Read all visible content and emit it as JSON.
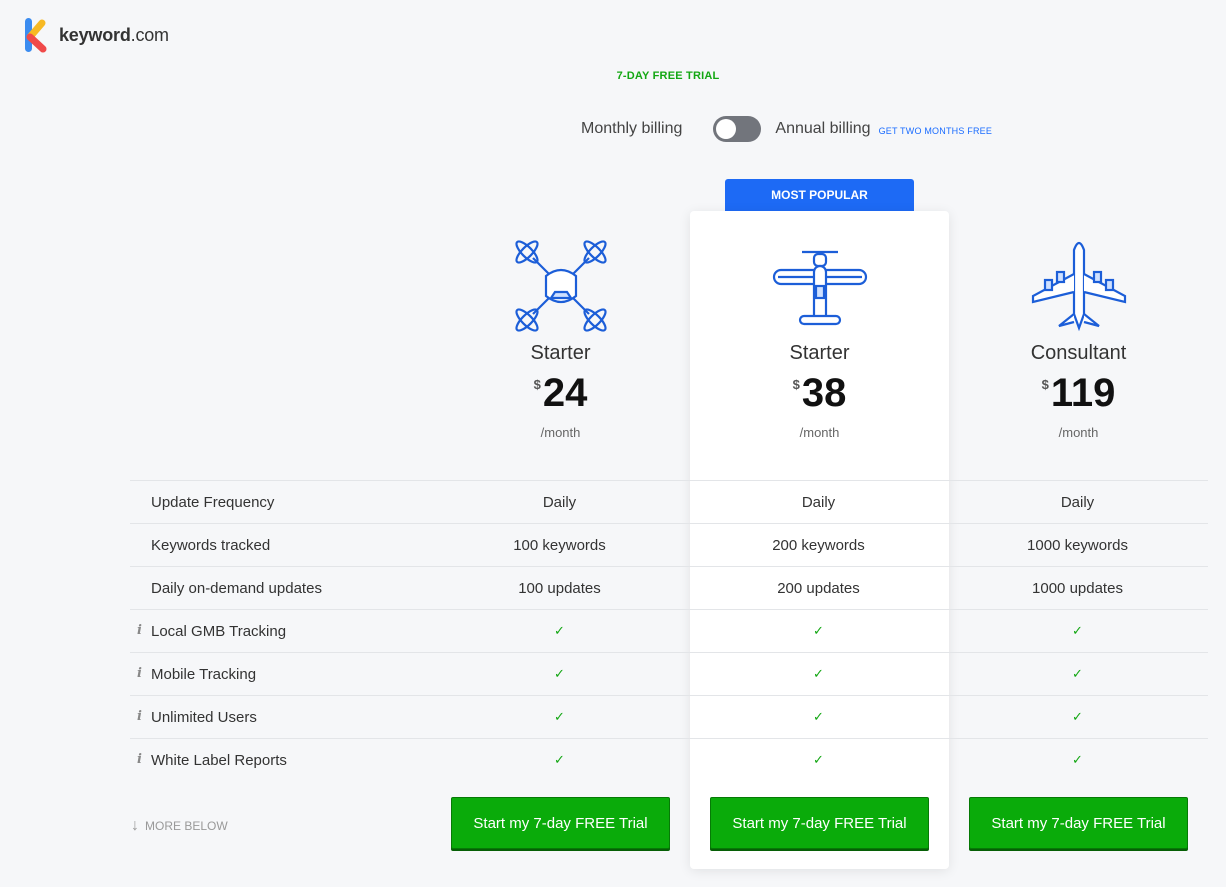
{
  "brand": {
    "name_bold": "keyword",
    "name_rest": ".com"
  },
  "trial_banner": "7-DAY FREE TRIAL",
  "billing": {
    "monthly_label": "Monthly billing",
    "annual_label": "Annual billing",
    "promo": "GET TWO MONTHS FREE",
    "annual_selected": false
  },
  "popular_badge": "MOST POPULAR",
  "plans": [
    {
      "icon": "drone-icon",
      "name": "Starter",
      "currency": "$",
      "amount": "24",
      "period": "/month"
    },
    {
      "icon": "biplane-icon",
      "name": "Starter",
      "currency": "$",
      "amount": "38",
      "period": "/month"
    },
    {
      "icon": "airliner-icon",
      "name": "Consultant",
      "currency": "$",
      "amount": "119",
      "period": "/month"
    }
  ],
  "features": [
    {
      "label": "Update Frequency",
      "info": false,
      "values": [
        "Daily",
        "Daily",
        "Daily"
      ]
    },
    {
      "label": "Keywords tracked",
      "info": false,
      "values": [
        "100 keywords",
        "200 keywords",
        "1000 keywords"
      ]
    },
    {
      "label": "Daily on-demand updates",
      "info": false,
      "values": [
        "100 updates",
        "200 updates",
        "1000 updates"
      ]
    },
    {
      "label": "Local GMB Tracking",
      "info": true,
      "values": [
        "✓",
        "✓",
        "✓"
      ]
    },
    {
      "label": "Mobile Tracking",
      "info": true,
      "values": [
        "✓",
        "✓",
        "✓"
      ]
    },
    {
      "label": "Unlimited Users",
      "info": true,
      "values": [
        "✓",
        "✓",
        "✓"
      ]
    },
    {
      "label": "White Label Reports",
      "info": true,
      "values": [
        "✓",
        "✓",
        "✓"
      ]
    }
  ],
  "info_glyph": "i",
  "more_below": "MORE BELOW",
  "cta_label": "Start my 7-day FREE Trial",
  "colors": {
    "accent_blue": "#1d6af5",
    "cta_green": "#0aab0a",
    "check_green": "#13a713"
  }
}
